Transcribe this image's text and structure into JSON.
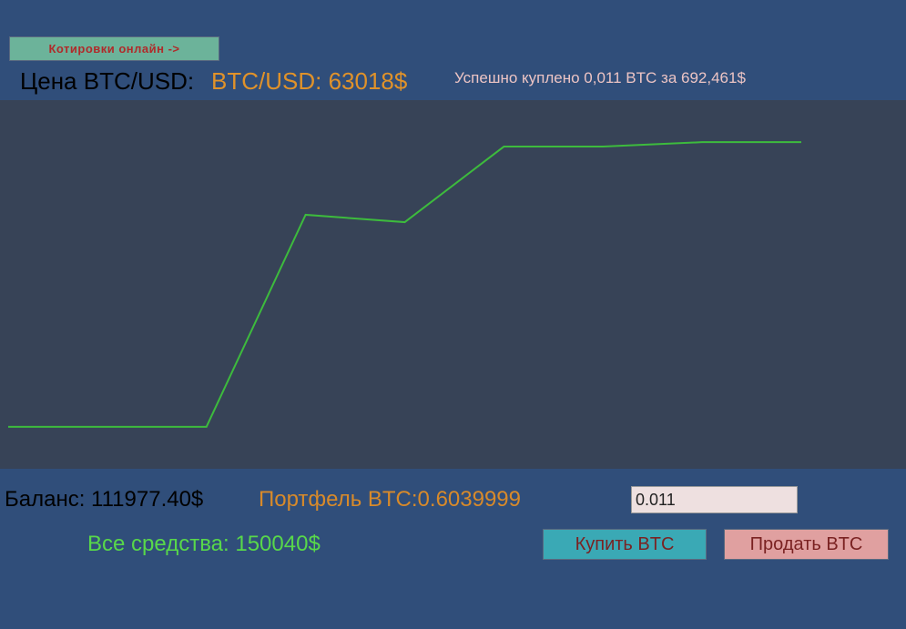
{
  "header": {
    "quotes_button": "Котировки онлайн ->",
    "price_label": "Цена BTC/USD:",
    "price_value": "BTC/USD: 63018$",
    "message": "Успешно куплено 0,011 BTC за 692,461$"
  },
  "chart_data": {
    "type": "line",
    "categories": [
      null,
      null,
      null,
      null,
      null,
      null,
      null,
      null,
      null
    ],
    "series": [
      {
        "color": "#3dbb3d",
        "values": [
          11.4,
          11.4,
          11.4,
          68.9,
          66.9,
          87.4,
          87.4,
          88.6,
          88.6
        ]
      }
    ],
    "ylim": [
      0,
      100
    ]
  },
  "footer": {
    "balance": "Баланс: 111977.40$",
    "portfolio": "Портфель BTC:0.6039999",
    "amount_input": "0.011",
    "total": "Все средства: 150040$",
    "buy_button": "Купить BTC",
    "sell_button": "Продать BTC"
  }
}
